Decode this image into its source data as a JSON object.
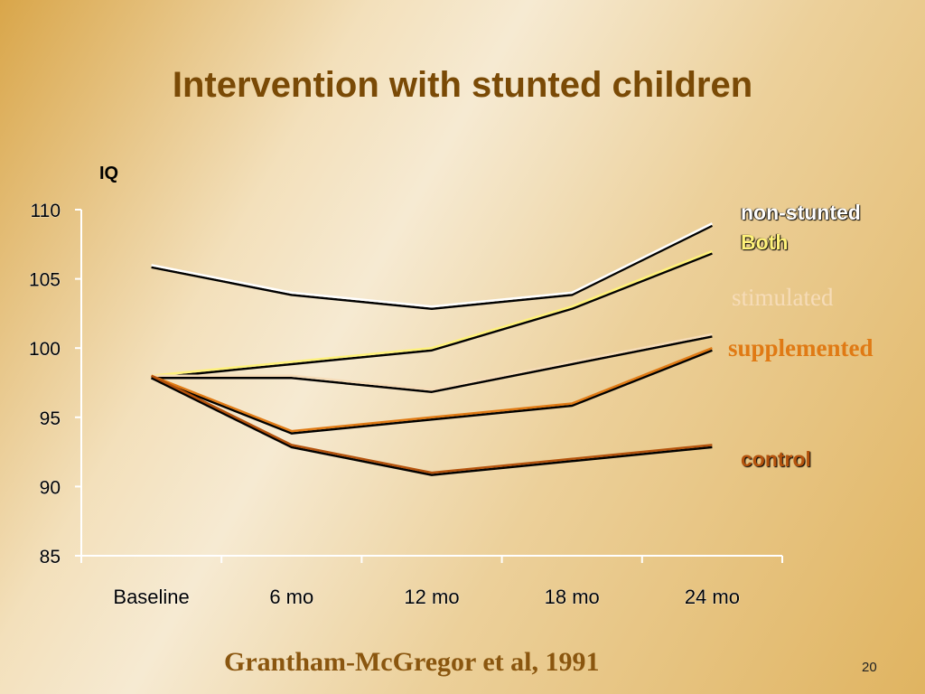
{
  "slide": {
    "title": "Intervention with stunted children",
    "citation": "Grantham-McGregor et al, 1991",
    "page_number": "20"
  },
  "chart_data": {
    "type": "line",
    "title": "Intervention with stunted children",
    "ylabel": "IQ",
    "xlabel": "",
    "categories": [
      "Baseline",
      "6 mo",
      "12 mo",
      "18 mo",
      "24 mo"
    ],
    "ylim": [
      85,
      110
    ],
    "yticks": [
      "85",
      "90",
      "95",
      "100",
      "105",
      "110"
    ],
    "grid": false,
    "legend_placement": "right",
    "series": [
      {
        "name": "non-stunted",
        "color": "#ffffff",
        "values": [
          106,
          104,
          103,
          104,
          109
        ]
      },
      {
        "name": "Both",
        "color": "#fff27a",
        "values": [
          98,
          99,
          100,
          103,
          107
        ]
      },
      {
        "name": "stimulated",
        "color": "#f6dcb8",
        "values": [
          98,
          98,
          97,
          99,
          101
        ]
      },
      {
        "name": "supplemented",
        "color": "#e07a14",
        "values": [
          98,
          94,
          95,
          96,
          100
        ]
      },
      {
        "name": "control",
        "color": "#b4520c",
        "values": [
          98,
          93,
          91,
          92,
          93
        ]
      }
    ]
  }
}
